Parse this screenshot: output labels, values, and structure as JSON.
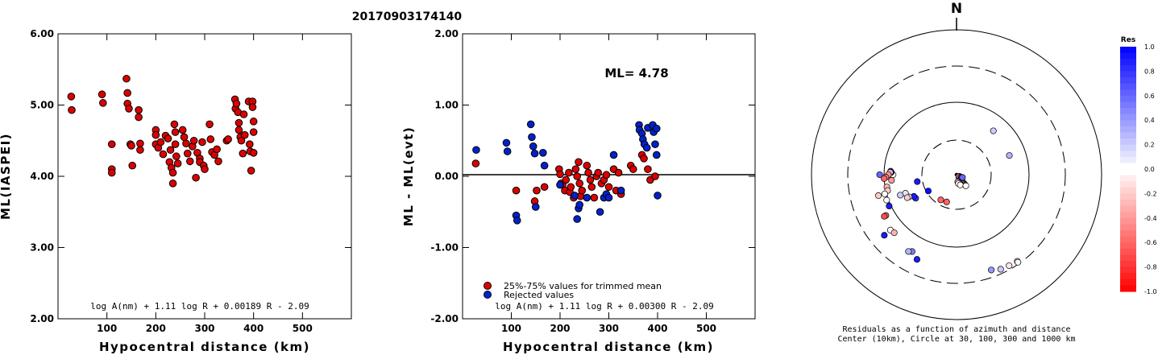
{
  "title": "20170903174140",
  "chart_data": [
    {
      "type": "scatter",
      "ylabel": "ML(IASPEI)",
      "xlabel": "Hypocentral distance (km)",
      "xlim": [
        0,
        600
      ],
      "ylim": [
        2.0,
        6.0
      ],
      "xticks": [
        "100",
        "200",
        "300",
        "400",
        "500"
      ],
      "xtick_values": [
        100,
        200,
        300,
        400,
        500
      ],
      "yticks": [
        "2.00",
        "3.00",
        "4.00",
        "5.00",
        "6.00"
      ],
      "ytick_values": [
        2,
        3,
        4,
        5,
        6
      ],
      "formula": "log A(nm) + 1.11 log R + 0.00189 R - 2.09",
      "series": [
        {
          "color": "#dd0000",
          "points": [
            [
              27,
              5.12
            ],
            [
              28,
              4.93
            ],
            [
              90,
              5.15
            ],
            [
              92,
              5.03
            ],
            [
              110,
              4.45
            ],
            [
              110,
              4.1
            ],
            [
              110,
              4.05
            ],
            [
              140,
              5.37
            ],
            [
              142,
              5.17
            ],
            [
              142,
              5.02
            ],
            [
              145,
              4.95
            ],
            [
              148,
              4.45
            ],
            [
              150,
              4.43
            ],
            [
              152,
              4.15
            ],
            [
              165,
              4.93
            ],
            [
              165,
              4.83
            ],
            [
              168,
              4.46
            ],
            [
              168,
              4.37
            ],
            [
              200,
              4.65
            ],
            [
              200,
              4.58
            ],
            [
              200,
              4.45
            ],
            [
              205,
              4.4
            ],
            [
              210,
              4.48
            ],
            [
              215,
              4.31
            ],
            [
              220,
              4.57
            ],
            [
              225,
              4.53
            ],
            [
              228,
              4.2
            ],
            [
              230,
              4.37
            ],
            [
              232,
              4.12
            ],
            [
              235,
              4.05
            ],
            [
              235,
              3.9
            ],
            [
              238,
              4.73
            ],
            [
              240,
              4.62
            ],
            [
              240,
              4.45
            ],
            [
              242,
              4.28
            ],
            [
              245,
              4.18
            ],
            [
              255,
              4.65
            ],
            [
              258,
              4.55
            ],
            [
              262,
              4.46
            ],
            [
              265,
              4.32
            ],
            [
              270,
              4.21
            ],
            [
              275,
              4.42
            ],
            [
              278,
              4.5
            ],
            [
              282,
              3.98
            ],
            [
              285,
              4.33
            ],
            [
              290,
              4.25
            ],
            [
              290,
              4.2
            ],
            [
              295,
              4.48
            ],
            [
              298,
              4.15
            ],
            [
              300,
              4.1
            ],
            [
              310,
              4.73
            ],
            [
              312,
              4.52
            ],
            [
              315,
              4.34
            ],
            [
              320,
              4.3
            ],
            [
              325,
              4.38
            ],
            [
              328,
              4.21
            ],
            [
              345,
              4.5
            ],
            [
              348,
              4.52
            ],
            [
              362,
              5.08
            ],
            [
              363,
              4.95
            ],
            [
              365,
              5.02
            ],
            [
              368,
              4.9
            ],
            [
              370,
              4.75
            ],
            [
              370,
              4.65
            ],
            [
              373,
              4.55
            ],
            [
              375,
              4.5
            ],
            [
              378,
              4.32
            ],
            [
              380,
              4.87
            ],
            [
              382,
              4.58
            ],
            [
              390,
              5.05
            ],
            [
              392,
              4.45
            ],
            [
              393,
              4.35
            ],
            [
              398,
              5.05
            ],
            [
              398,
              4.97
            ],
            [
              400,
              4.77
            ],
            [
              400,
              4.62
            ],
            [
              400,
              4.33
            ],
            [
              395,
              4.08
            ]
          ]
        }
      ]
    },
    {
      "type": "scatter",
      "ylabel": "ML - ML(evt)",
      "xlabel": "Hypocentral distance (km)",
      "xlim": [
        0,
        600
      ],
      "ylim": [
        -2.0,
        2.0
      ],
      "xticks": [
        "100",
        "200",
        "300",
        "400",
        "500"
      ],
      "xtick_values": [
        100,
        200,
        300,
        400,
        500
      ],
      "yticks": [
        "-2.00",
        "-1.00",
        "0.00",
        "1.00",
        "2.00"
      ],
      "ytick_values": [
        -2,
        -1,
        0,
        1,
        2
      ],
      "annotation": "ML= 4.78",
      "formula": "log A(nm) + 1.11 log R + 0.00300 R - 2.09",
      "legend": [
        {
          "label": "25%-75% values for trimmed mean",
          "color": "#dd0000"
        },
        {
          "label": "Rejected values",
          "color": "#0022cc"
        }
      ],
      "series": [
        {
          "name": "25%-75% values for trimmed mean",
          "color": "#dd0000",
          "points": [
            [
              27,
              0.18
            ],
            [
              110,
              -0.2
            ],
            [
              148,
              -0.35
            ],
            [
              152,
              -0.2
            ],
            [
              168,
              -0.15
            ],
            [
              198,
              0.1
            ],
            [
              200,
              0.03
            ],
            [
              202,
              -0.1
            ],
            [
              205,
              -0.12
            ],
            [
              210,
              -0.2
            ],
            [
              212,
              -0.05
            ],
            [
              218,
              0.05
            ],
            [
              220,
              -0.22
            ],
            [
              222,
              -0.15
            ],
            [
              228,
              -0.3
            ],
            [
              232,
              0.1
            ],
            [
              235,
              0.0
            ],
            [
              238,
              0.2
            ],
            [
              240,
              -0.1
            ],
            [
              242,
              -0.28
            ],
            [
              245,
              -0.2
            ],
            [
              255,
              0.15
            ],
            [
              258,
              0.05
            ],
            [
              262,
              -0.05
            ],
            [
              265,
              -0.15
            ],
            [
              270,
              -0.3
            ],
            [
              275,
              0.0
            ],
            [
              278,
              0.05
            ],
            [
              285,
              -0.1
            ],
            [
              290,
              -0.05
            ],
            [
              295,
              0.02
            ],
            [
              300,
              -0.15
            ],
            [
              310,
              0.1
            ],
            [
              315,
              -0.2
            ],
            [
              320,
              0.05
            ],
            [
              325,
              -0.25
            ],
            [
              345,
              0.15
            ],
            [
              350,
              0.1
            ],
            [
              368,
              0.3
            ],
            [
              372,
              0.25
            ],
            [
              380,
              0.1
            ],
            [
              385,
              -0.05
            ],
            [
              395,
              0.0
            ]
          ]
        },
        {
          "name": "Rejected values",
          "color": "#0022cc",
          "points": [
            [
              28,
              0.37
            ],
            [
              90,
              0.47
            ],
            [
              92,
              0.35
            ],
            [
              110,
              -0.55
            ],
            [
              112,
              -0.62
            ],
            [
              140,
              0.73
            ],
            [
              142,
              0.55
            ],
            [
              145,
              0.42
            ],
            [
              148,
              0.32
            ],
            [
              150,
              -0.43
            ],
            [
              165,
              0.33
            ],
            [
              168,
              0.15
            ],
            [
              200,
              -0.12
            ],
            [
              230,
              -0.27
            ],
            [
              235,
              -0.6
            ],
            [
              238,
              -0.45
            ],
            [
              240,
              -0.4
            ],
            [
              255,
              -0.3
            ],
            [
              282,
              -0.5
            ],
            [
              290,
              -0.3
            ],
            [
              295,
              -0.25
            ],
            [
              300,
              -0.3
            ],
            [
              310,
              0.3
            ],
            [
              325,
              -0.2
            ],
            [
              362,
              0.72
            ],
            [
              363,
              0.65
            ],
            [
              368,
              0.6
            ],
            [
              370,
              0.52
            ],
            [
              373,
              0.45
            ],
            [
              378,
              0.4
            ],
            [
              380,
              0.68
            ],
            [
              390,
              0.72
            ],
            [
              392,
              0.62
            ],
            [
              395,
              0.45
            ],
            [
              398,
              0.67
            ],
            [
              398,
              0.3
            ],
            [
              400,
              -0.27
            ]
          ]
        }
      ]
    },
    {
      "type": "scatter",
      "subtype": "polar",
      "north_label": "N",
      "caption_line1": "Residuals as a function of azimuth and distance",
      "caption_line2": "Center (10km), Circle at 30, 100, 300 and 1000 km",
      "rings_km": [
        30,
        100,
        300,
        1000
      ],
      "colorbar": {
        "title": "Res",
        "labels": [
          "1.0",
          "0.8",
          "0.6",
          "0.4",
          "0.2",
          "0.0",
          "-0.2",
          "-0.4",
          "-0.6",
          "-0.8",
          "-1.0"
        ],
        "min": -1.0,
        "max": 1.0
      },
      "points": [
        [
          10,
          140,
          0.0
        ],
        [
          15,
          135,
          0.15
        ],
        [
          18,
          140,
          0.15
        ],
        [
          20,
          138,
          0.2
        ],
        [
          25,
          140,
          0.3
        ],
        [
          30,
          140,
          -0.3
        ],
        [
          32,
          140,
          -0.4
        ],
        [
          35,
          140,
          -0.5
        ],
        [
          38,
          140,
          -0.4
        ],
        [
          28,
          160,
          -0.35
        ],
        [
          22,
          163,
          -0.2
        ],
        [
          20,
          170,
          -0.4
        ],
        [
          25,
          168,
          0.0
        ],
        [
          30,
          160,
          0.0
        ],
        [
          40,
          140,
          0.0
        ],
        [
          8,
          123,
          -0.4
        ],
        [
          12,
          120,
          -0.5
        ],
        [
          15,
          118,
          0.8
        ],
        [
          18,
          115,
          0.6
        ],
        [
          155,
          70,
          0.3
        ],
        [
          158,
          40,
          0.2
        ],
        [
          80,
          200,
          -0.6
        ],
        [
          82,
          212,
          -0.6
        ],
        [
          90,
          240,
          0.95
        ],
        [
          110,
          260,
          0.9
        ],
        [
          130,
          240,
          0.8
        ],
        [
          132,
          243,
          0.9
        ],
        [
          145,
          245,
          0.0
        ],
        [
          150,
          250,
          0.1
        ],
        [
          150,
          245,
          -0.2
        ],
        [
          165,
          250,
          0.2
        ],
        [
          175,
          270,
          0.0
        ],
        [
          180,
          265,
          -0.4
        ],
        [
          180,
          272,
          0.9
        ],
        [
          182,
          273,
          0.9
        ],
        [
          183,
          272,
          -0.3
        ],
        [
          188,
          270,
          -0.4
        ],
        [
          195,
          268,
          -0.5
        ],
        [
          200,
          267,
          -0.6
        ],
        [
          195,
          260,
          -0.3
        ],
        [
          195,
          257,
          -0.2
        ],
        [
          205,
          255,
          0.0
        ],
        [
          212,
          270,
          0.6
        ],
        [
          205,
          245,
          0.9
        ],
        [
          205,
          250,
          0.0
        ],
        [
          223,
          255,
          -0.2
        ],
        [
          225,
          240,
          -0.6
        ],
        [
          230,
          240,
          -0.7
        ],
        [
          238,
          230,
          0.0
        ],
        [
          235,
          227,
          -0.3
        ],
        [
          245,
          210,
          0.5
        ],
        [
          250,
          212,
          0.3
        ],
        [
          260,
          230,
          0.9
        ],
        [
          258,
          205,
          0.9
        ],
        [
          280,
          160,
          0.4
        ],
        [
          288,
          155,
          0.2
        ],
        [
          290,
          150,
          -0.1
        ],
        [
          292,
          145,
          -0.2
        ],
        [
          295,
          145,
          0.0
        ]
      ]
    }
  ]
}
